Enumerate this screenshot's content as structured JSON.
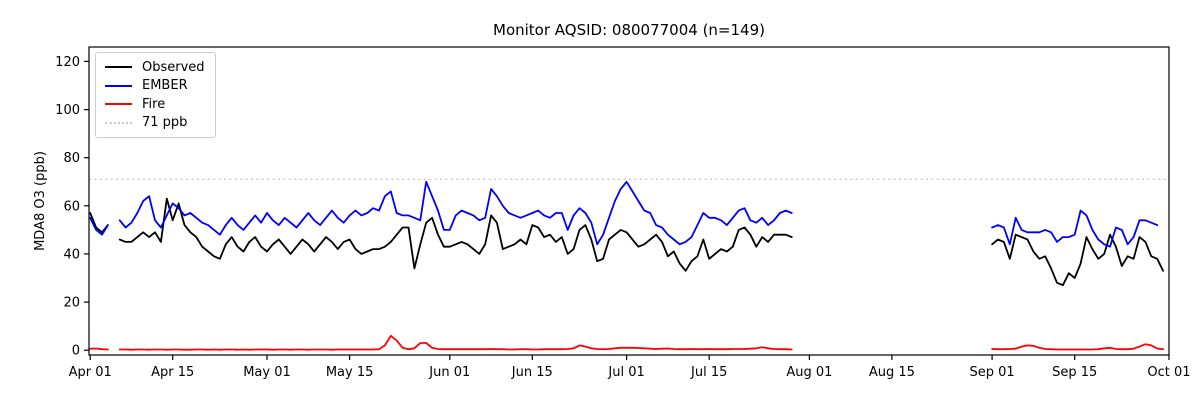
{
  "figure": {
    "title": "Monitor AQSID: 080077004 (n=149)"
  },
  "chart_data": {
    "type": "line",
    "title": "Monitor AQSID: 080077004 (n=149)",
    "xlabel": "",
    "ylabel": "MDA8 O3 (ppb)",
    "n_points": 149,
    "grid": false,
    "legend_position": "upper left",
    "x_start_date": "Apr 01",
    "x_unit": "daily values, day index 0 = Apr 01",
    "xlim": [
      -0.2,
      183
    ],
    "ylim": [
      -2,
      126
    ],
    "y_ticks": [
      0,
      20,
      40,
      60,
      80,
      100,
      120
    ],
    "x_ticks": [
      {
        "label": "Apr 01",
        "day": 0
      },
      {
        "label": "Apr 15",
        "day": 14
      },
      {
        "label": "May 01",
        "day": 30
      },
      {
        "label": "May 15",
        "day": 44
      },
      {
        "label": "Jun 01",
        "day": 61
      },
      {
        "label": "Jun 15",
        "day": 75
      },
      {
        "label": "Jul 01",
        "day": 91
      },
      {
        "label": "Jul 15",
        "day": 105
      },
      {
        "label": "Aug 01",
        "day": 122
      },
      {
        "label": "Aug 15",
        "day": 136
      },
      {
        "label": "Sep 01",
        "day": 153
      },
      {
        "label": "Sep 15",
        "day": 167
      },
      {
        "label": "Oct 01",
        "day": 183
      }
    ],
    "threshold": {
      "label": "71 ppb",
      "value": 71,
      "color": "#c9c9c9",
      "style": "dotted"
    },
    "data_gaps": [
      "Apr 05",
      "Jul 30 - Aug 31"
    ],
    "legend": [
      {
        "label": "Observed",
        "color": "#000000",
        "style": "solid"
      },
      {
        "label": "EMBER",
        "color": "#0000ff",
        "style": "solid"
      },
      {
        "label": "Fire",
        "color": "#ff0000",
        "style": "solid"
      },
      {
        "label": "71 ppb",
        "color": "#c9c9c9",
        "style": "dotted"
      }
    ],
    "series": [
      {
        "name": "Observed",
        "color": "#000000",
        "values": [
          57,
          51,
          49,
          52,
          null,
          46,
          45,
          45,
          47,
          49,
          47,
          49,
          45,
          63,
          54,
          61,
          52,
          49,
          47,
          43,
          41,
          39,
          38,
          44,
          47,
          43,
          41,
          45,
          47,
          43,
          41,
          44,
          46,
          43,
          40,
          43,
          46,
          44,
          41,
          44,
          47,
          45,
          42,
          45,
          46,
          42,
          40,
          41,
          42,
          42,
          43,
          45,
          48,
          51,
          51,
          34,
          44,
          53,
          55,
          48,
          43,
          43,
          44,
          45,
          44,
          42,
          40,
          44,
          56,
          53,
          42,
          43,
          44,
          46,
          44,
          52,
          51,
          47,
          48,
          45,
          47,
          40,
          42,
          50,
          52,
          46,
          37,
          38,
          46,
          48,
          50,
          49,
          46,
          43,
          44,
          46,
          48,
          45,
          39,
          41,
          36,
          33,
          37,
          39,
          46,
          38,
          40,
          42,
          41,
          43,
          50,
          51,
          48,
          43,
          47,
          45,
          48,
          48,
          48,
          47,
          null,
          null,
          null,
          null,
          null,
          null,
          null,
          null,
          null,
          null,
          null,
          null,
          null,
          null,
          null,
          null,
          null,
          null,
          null,
          null,
          null,
          null,
          null,
          null,
          null,
          null,
          null,
          null,
          null,
          null,
          null,
          null,
          null,
          44,
          46,
          45,
          38,
          48,
          47,
          46,
          41,
          38,
          39,
          34,
          28,
          27,
          32,
          30,
          36,
          47,
          42,
          38,
          40,
          48,
          43,
          35,
          39,
          38,
          47,
          45,
          39,
          38,
          33
        ]
      },
      {
        "name": "EMBER",
        "color": "#0000ff",
        "values": [
          55,
          50,
          48,
          52,
          null,
          54,
          51,
          53,
          57,
          62,
          64,
          54,
          51,
          56,
          61,
          59,
          56,
          57,
          55,
          53,
          52,
          50,
          48,
          52,
          55,
          52,
          50,
          53,
          56,
          53,
          57,
          54,
          52,
          55,
          53,
          51,
          54,
          57,
          54,
          52,
          55,
          58,
          55,
          53,
          56,
          58,
          56,
          57,
          59,
          58,
          64,
          66,
          57,
          56,
          56,
          55,
          54,
          70,
          64,
          58,
          50,
          50,
          56,
          58,
          57,
          56,
          54,
          55,
          67,
          64,
          60,
          57,
          56,
          55,
          56,
          57,
          58,
          56,
          55,
          57,
          57,
          50,
          56,
          59,
          57,
          53,
          44,
          48,
          55,
          62,
          67,
          70,
          66,
          62,
          58,
          57,
          52,
          51,
          48,
          46,
          44,
          45,
          47,
          52,
          57,
          55,
          55,
          54,
          52,
          55,
          58,
          59,
          54,
          53,
          55,
          52,
          54,
          57,
          58,
          57,
          null,
          null,
          null,
          null,
          null,
          null,
          null,
          null,
          null,
          null,
          null,
          null,
          null,
          null,
          null,
          null,
          null,
          null,
          null,
          null,
          null,
          null,
          null,
          null,
          null,
          null,
          null,
          null,
          null,
          null,
          null,
          null,
          null,
          51,
          52,
          51,
          44,
          55,
          50,
          49,
          49,
          49,
          50,
          49,
          45,
          47,
          47,
          48,
          58,
          56,
          50,
          46,
          44,
          43,
          51,
          50,
          44,
          47,
          54,
          54,
          53,
          52,
          null
        ]
      },
      {
        "name": "Fire",
        "color": "#ff0000",
        "values": [
          0.6,
          0.7,
          0.4,
          0.3,
          null,
          0.3,
          0.3,
          0.2,
          0.3,
          0.3,
          0.2,
          0.3,
          0.3,
          0.2,
          0.3,
          0.3,
          0.2,
          0.2,
          0.3,
          0.3,
          0.2,
          0.3,
          0.2,
          0.3,
          0.3,
          0.2,
          0.3,
          0.2,
          0.3,
          0.3,
          0.3,
          0.2,
          0.3,
          0.3,
          0.2,
          0.3,
          0.3,
          0.2,
          0.3,
          0.3,
          0.3,
          0.2,
          0.3,
          0.3,
          0.3,
          0.3,
          0.3,
          0.3,
          0.3,
          0.4,
          2,
          6,
          4,
          1,
          0.4,
          0.8,
          3,
          3,
          1,
          0.5,
          0.4,
          0.4,
          0.4,
          0.4,
          0.4,
          0.4,
          0.4,
          0.4,
          0.5,
          0.4,
          0.4,
          0.3,
          0.3,
          0.4,
          0.4,
          0.3,
          0.3,
          0.4,
          0.4,
          0.4,
          0.4,
          0.5,
          0.8,
          2,
          1.5,
          0.8,
          0.5,
          0.4,
          0.5,
          0.8,
          1,
          1,
          1,
          0.9,
          0.8,
          0.6,
          0.5,
          0.6,
          0.7,
          0.5,
          0.4,
          0.4,
          0.5,
          0.4,
          0.4,
          0.5,
          0.4,
          0.4,
          0.4,
          0.5,
          0.5,
          0.5,
          0.6,
          0.8,
          1.2,
          0.8,
          0.5,
          0.4,
          0.4,
          0.3,
          null,
          null,
          null,
          null,
          null,
          null,
          null,
          null,
          null,
          null,
          null,
          null,
          null,
          null,
          null,
          null,
          null,
          null,
          null,
          null,
          null,
          null,
          null,
          null,
          null,
          null,
          null,
          null,
          null,
          null,
          null,
          null,
          null,
          0.5,
          0.4,
          0.4,
          0.5,
          0.6,
          1.5,
          2,
          1.8,
          1,
          0.5,
          0.4,
          0.3,
          0.3,
          0.3,
          0.3,
          0.3,
          0.3,
          0.3,
          0.4,
          0.8,
          1,
          0.5,
          0.4,
          0.4,
          0.6,
          1.5,
          2.5,
          2,
          0.7,
          0.4
        ]
      }
    ]
  }
}
